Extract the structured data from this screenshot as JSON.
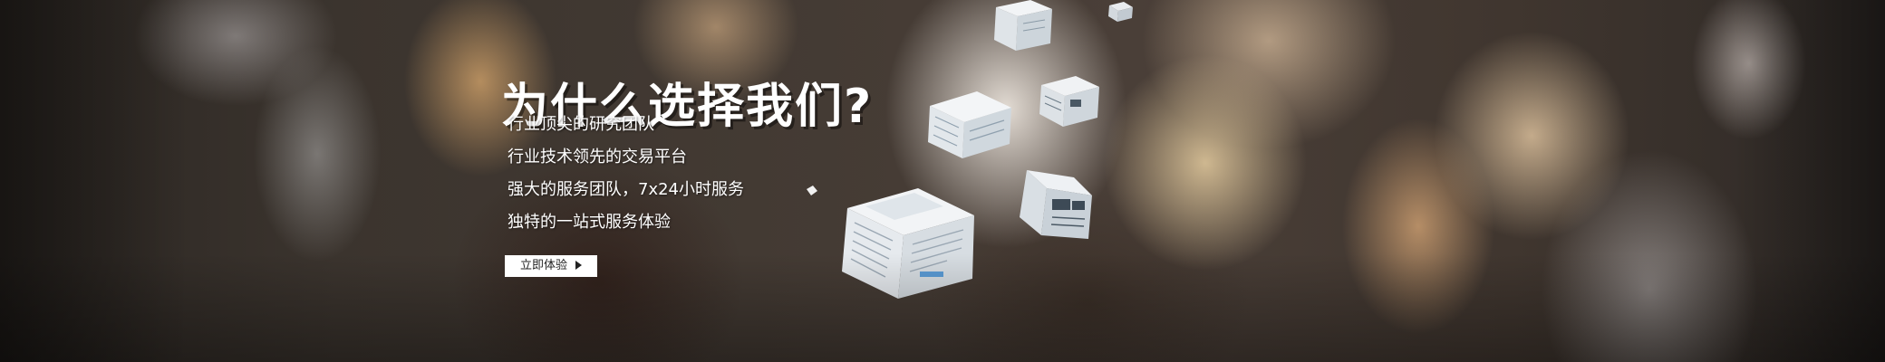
{
  "banner": {
    "headline": "为什么选择我们?",
    "features": [
      "行业顶尖的研究团队",
      "行业技术领先的交易平台",
      "强大的服务团队，7x24小时服务",
      "独特的一站式服务体验"
    ],
    "cta_label": "立即体验",
    "cta_icon": "play-triangle-icon"
  },
  "colors": {
    "text": "#ffffff",
    "button_bg": "#ffffff",
    "button_text": "#222222"
  }
}
